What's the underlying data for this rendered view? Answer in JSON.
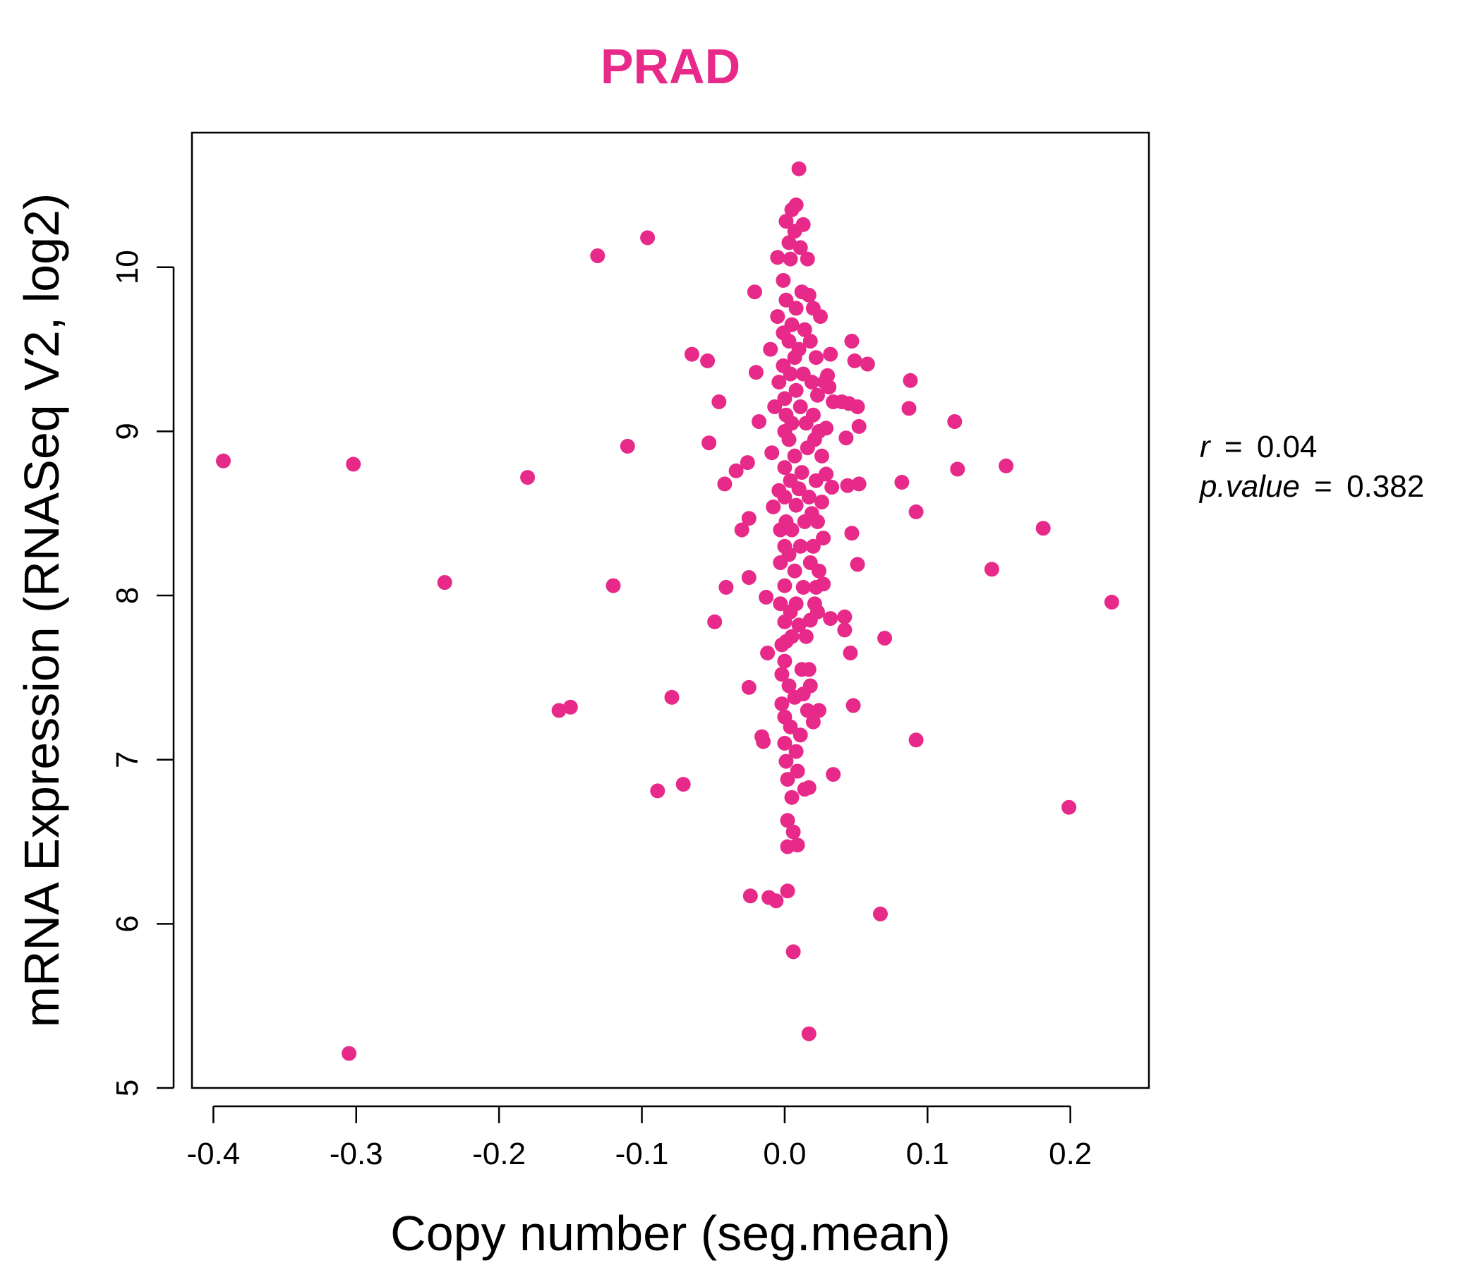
{
  "chart_data": {
    "type": "scatter",
    "title": "PRAD",
    "xlabel": "Copy number (seg.mean)",
    "ylabel": "mRNA Expression (RNASeq V2, log2)",
    "xlim": [
      -0.415,
      0.255
    ],
    "ylim": [
      5.0,
      10.82
    ],
    "xticks": [
      -0.4,
      -0.3,
      -0.2,
      -0.1,
      0.0,
      0.1,
      0.2
    ],
    "xtick_labels": [
      "-0.4",
      "-0.3",
      "-0.2",
      "-0.1",
      "0.0",
      "0.1",
      "0.2"
    ],
    "yticks": [
      5,
      6,
      7,
      8,
      9,
      10
    ],
    "ytick_labels": [
      "5",
      "6",
      "7",
      "8",
      "9",
      "10"
    ],
    "grid": false,
    "point_color": "#E7298A",
    "title_color": "#E7298A",
    "annotations": {
      "r": {
        "name": "r",
        "eq": "=",
        "value": "0.04"
      },
      "p": {
        "name": "p.value",
        "eq": "=",
        "value": "0.382"
      }
    },
    "points": [
      [
        -0.393,
        8.82
      ],
      [
        -0.305,
        5.21
      ],
      [
        -0.302,
        8.8
      ],
      [
        -0.238,
        8.08
      ],
      [
        -0.18,
        8.72
      ],
      [
        -0.158,
        7.3
      ],
      [
        -0.15,
        7.32
      ],
      [
        -0.131,
        10.07
      ],
      [
        -0.12,
        8.06
      ],
      [
        -0.11,
        8.91
      ],
      [
        -0.096,
        10.18
      ],
      [
        -0.089,
        6.81
      ],
      [
        -0.079,
        7.38
      ],
      [
        -0.071,
        6.85
      ],
      [
        -0.065,
        9.47
      ],
      [
        -0.054,
        9.43
      ],
      [
        -0.053,
        8.93
      ],
      [
        -0.049,
        7.84
      ],
      [
        -0.046,
        9.18
      ],
      [
        -0.042,
        8.68
      ],
      [
        -0.041,
        8.05
      ],
      [
        -0.034,
        8.76
      ],
      [
        -0.03,
        8.4
      ],
      [
        -0.026,
        8.81
      ],
      [
        -0.025,
        8.47
      ],
      [
        -0.025,
        8.11
      ],
      [
        -0.025,
        7.44
      ],
      [
        -0.024,
        6.17
      ],
      [
        -0.021,
        9.85
      ],
      [
        -0.02,
        9.36
      ],
      [
        -0.018,
        9.06
      ],
      [
        -0.016,
        7.14
      ],
      [
        -0.015,
        7.11
      ],
      [
        -0.013,
        7.99
      ],
      [
        -0.012,
        7.65
      ],
      [
        -0.011,
        6.16
      ],
      [
        -0.01,
        9.5
      ],
      [
        -0.009,
        8.87
      ],
      [
        -0.008,
        8.54
      ],
      [
        -0.007,
        9.15
      ],
      [
        -0.006,
        6.14
      ],
      [
        -0.005,
        10.06
      ],
      [
        -0.005,
        9.7
      ],
      [
        -0.004,
        9.3
      ],
      [
        -0.004,
        8.64
      ],
      [
        -0.003,
        8.4
      ],
      [
        -0.003,
        8.2
      ],
      [
        -0.003,
        7.95
      ],
      [
        -0.002,
        7.7
      ],
      [
        -0.002,
        7.52
      ],
      [
        -0.002,
        7.34
      ],
      [
        -0.001,
        9.92
      ],
      [
        -0.001,
        9.6
      ],
      [
        -0.001,
        9.4
      ],
      [
        0.0,
        9.2
      ],
      [
        0.0,
        9.0
      ],
      [
        0.0,
        8.78
      ],
      [
        0.0,
        8.6
      ],
      [
        0.0,
        8.3
      ],
      [
        0.0,
        8.06
      ],
      [
        0.0,
        7.84
      ],
      [
        0.0,
        7.6
      ],
      [
        0.0,
        7.26
      ],
      [
        0.0,
        7.1
      ],
      [
        0.001,
        10.28
      ],
      [
        0.001,
        9.8
      ],
      [
        0.001,
        9.1
      ],
      [
        0.001,
        8.45
      ],
      [
        0.001,
        7.72
      ],
      [
        0.001,
        6.99
      ],
      [
        0.002,
        6.88
      ],
      [
        0.002,
        6.63
      ],
      [
        0.002,
        6.47
      ],
      [
        0.002,
        6.2
      ],
      [
        0.003,
        10.15
      ],
      [
        0.003,
        9.55
      ],
      [
        0.003,
        8.95
      ],
      [
        0.003,
        8.25
      ],
      [
        0.003,
        7.45
      ],
      [
        0.004,
        10.05
      ],
      [
        0.004,
        9.35
      ],
      [
        0.004,
        8.7
      ],
      [
        0.004,
        7.9
      ],
      [
        0.004,
        7.2
      ],
      [
        0.005,
        10.35
      ],
      [
        0.005,
        9.65
      ],
      [
        0.005,
        9.05
      ],
      [
        0.005,
        8.4
      ],
      [
        0.005,
        7.75
      ],
      [
        0.005,
        6.77
      ],
      [
        0.006,
        6.56
      ],
      [
        0.006,
        5.83
      ],
      [
        0.007,
        10.22
      ],
      [
        0.007,
        9.45
      ],
      [
        0.007,
        8.85
      ],
      [
        0.007,
        8.15
      ],
      [
        0.007,
        7.38
      ],
      [
        0.008,
        10.38
      ],
      [
        0.008,
        9.75
      ],
      [
        0.008,
        9.25
      ],
      [
        0.008,
        8.55
      ],
      [
        0.008,
        7.95
      ],
      [
        0.008,
        7.05
      ],
      [
        0.009,
        6.48
      ],
      [
        0.009,
        6.93
      ],
      [
        0.01,
        10.6
      ],
      [
        0.01,
        9.5
      ],
      [
        0.01,
        8.65
      ],
      [
        0.01,
        7.82
      ],
      [
        0.011,
        10.12
      ],
      [
        0.011,
        9.15
      ],
      [
        0.011,
        8.3
      ],
      [
        0.011,
        7.15
      ],
      [
        0.012,
        9.85
      ],
      [
        0.012,
        8.75
      ],
      [
        0.012,
        7.55
      ],
      [
        0.013,
        10.26
      ],
      [
        0.013,
        9.35
      ],
      [
        0.013,
        8.05
      ],
      [
        0.013,
        7.4
      ],
      [
        0.014,
        9.62
      ],
      [
        0.014,
        8.45
      ],
      [
        0.014,
        6.82
      ],
      [
        0.015,
        9.05
      ],
      [
        0.015,
        7.75
      ],
      [
        0.016,
        10.05
      ],
      [
        0.016,
        8.9
      ],
      [
        0.016,
        7.3
      ],
      [
        0.017,
        9.83
      ],
      [
        0.017,
        8.6
      ],
      [
        0.017,
        7.55
      ],
      [
        0.017,
        6.83
      ],
      [
        0.017,
        5.33
      ],
      [
        0.018,
        9.55
      ],
      [
        0.018,
        8.2
      ],
      [
        0.018,
        7.85
      ],
      [
        0.018,
        7.45
      ],
      [
        0.019,
        9.3
      ],
      [
        0.019,
        8.5
      ],
      [
        0.02,
        9.75
      ],
      [
        0.02,
        9.1
      ],
      [
        0.02,
        8.3
      ],
      [
        0.02,
        7.23
      ],
      [
        0.021,
        8.95
      ],
      [
        0.021,
        7.95
      ],
      [
        0.022,
        9.45
      ],
      [
        0.022,
        8.7
      ],
      [
        0.022,
        8.05
      ],
      [
        0.023,
        9.22
      ],
      [
        0.023,
        8.45
      ],
      [
        0.023,
        7.9
      ],
      [
        0.024,
        9.0
      ],
      [
        0.024,
        8.15
      ],
      [
        0.024,
        7.3
      ],
      [
        0.025,
        9.7
      ],
      [
        0.026,
        8.85
      ],
      [
        0.026,
        8.57
      ],
      [
        0.027,
        8.35
      ],
      [
        0.027,
        8.07
      ],
      [
        0.028,
        9.3
      ],
      [
        0.029,
        9.02
      ],
      [
        0.029,
        8.74
      ],
      [
        0.03,
        9.34
      ],
      [
        0.031,
        9.27
      ],
      [
        0.032,
        9.47
      ],
      [
        0.032,
        7.86
      ],
      [
        0.033,
        8.66
      ],
      [
        0.034,
        9.18
      ],
      [
        0.034,
        6.91
      ],
      [
        0.04,
        9.18
      ],
      [
        0.042,
        7.87
      ],
      [
        0.042,
        7.79
      ],
      [
        0.043,
        8.96
      ],
      [
        0.044,
        8.67
      ],
      [
        0.045,
        9.17
      ],
      [
        0.046,
        7.65
      ],
      [
        0.047,
        9.55
      ],
      [
        0.047,
        8.38
      ],
      [
        0.048,
        7.33
      ],
      [
        0.049,
        9.43
      ],
      [
        0.051,
        9.15
      ],
      [
        0.051,
        8.19
      ],
      [
        0.052,
        9.03
      ],
      [
        0.052,
        8.68
      ],
      [
        0.058,
        9.41
      ],
      [
        0.067,
        6.06
      ],
      [
        0.07,
        7.74
      ],
      [
        0.082,
        8.69
      ],
      [
        0.087,
        9.14
      ],
      [
        0.088,
        9.31
      ],
      [
        0.092,
        8.51
      ],
      [
        0.092,
        7.12
      ],
      [
        0.119,
        9.06
      ],
      [
        0.121,
        8.77
      ],
      [
        0.145,
        8.16
      ],
      [
        0.155,
        8.79
      ],
      [
        0.181,
        8.41
      ],
      [
        0.199,
        6.71
      ],
      [
        0.229,
        7.96
      ]
    ]
  }
}
